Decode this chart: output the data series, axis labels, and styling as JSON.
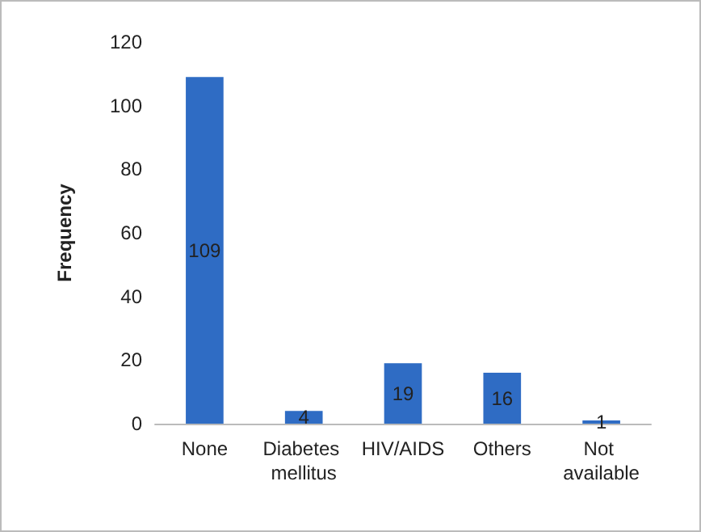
{
  "chart_data": {
    "type": "bar",
    "ylabel": "Frequency",
    "categories": [
      "None",
      "Diabetes mellitus",
      "HIV/AIDS",
      "Others",
      "Not available"
    ],
    "values": [
      109,
      4,
      19,
      16,
      1
    ],
    "color": "#2f6cc4",
    "ylim": [
      0,
      120
    ],
    "yticks": [
      0,
      20,
      40,
      60,
      80,
      100,
      120
    ],
    "grid": false,
    "data_labels": true
  }
}
